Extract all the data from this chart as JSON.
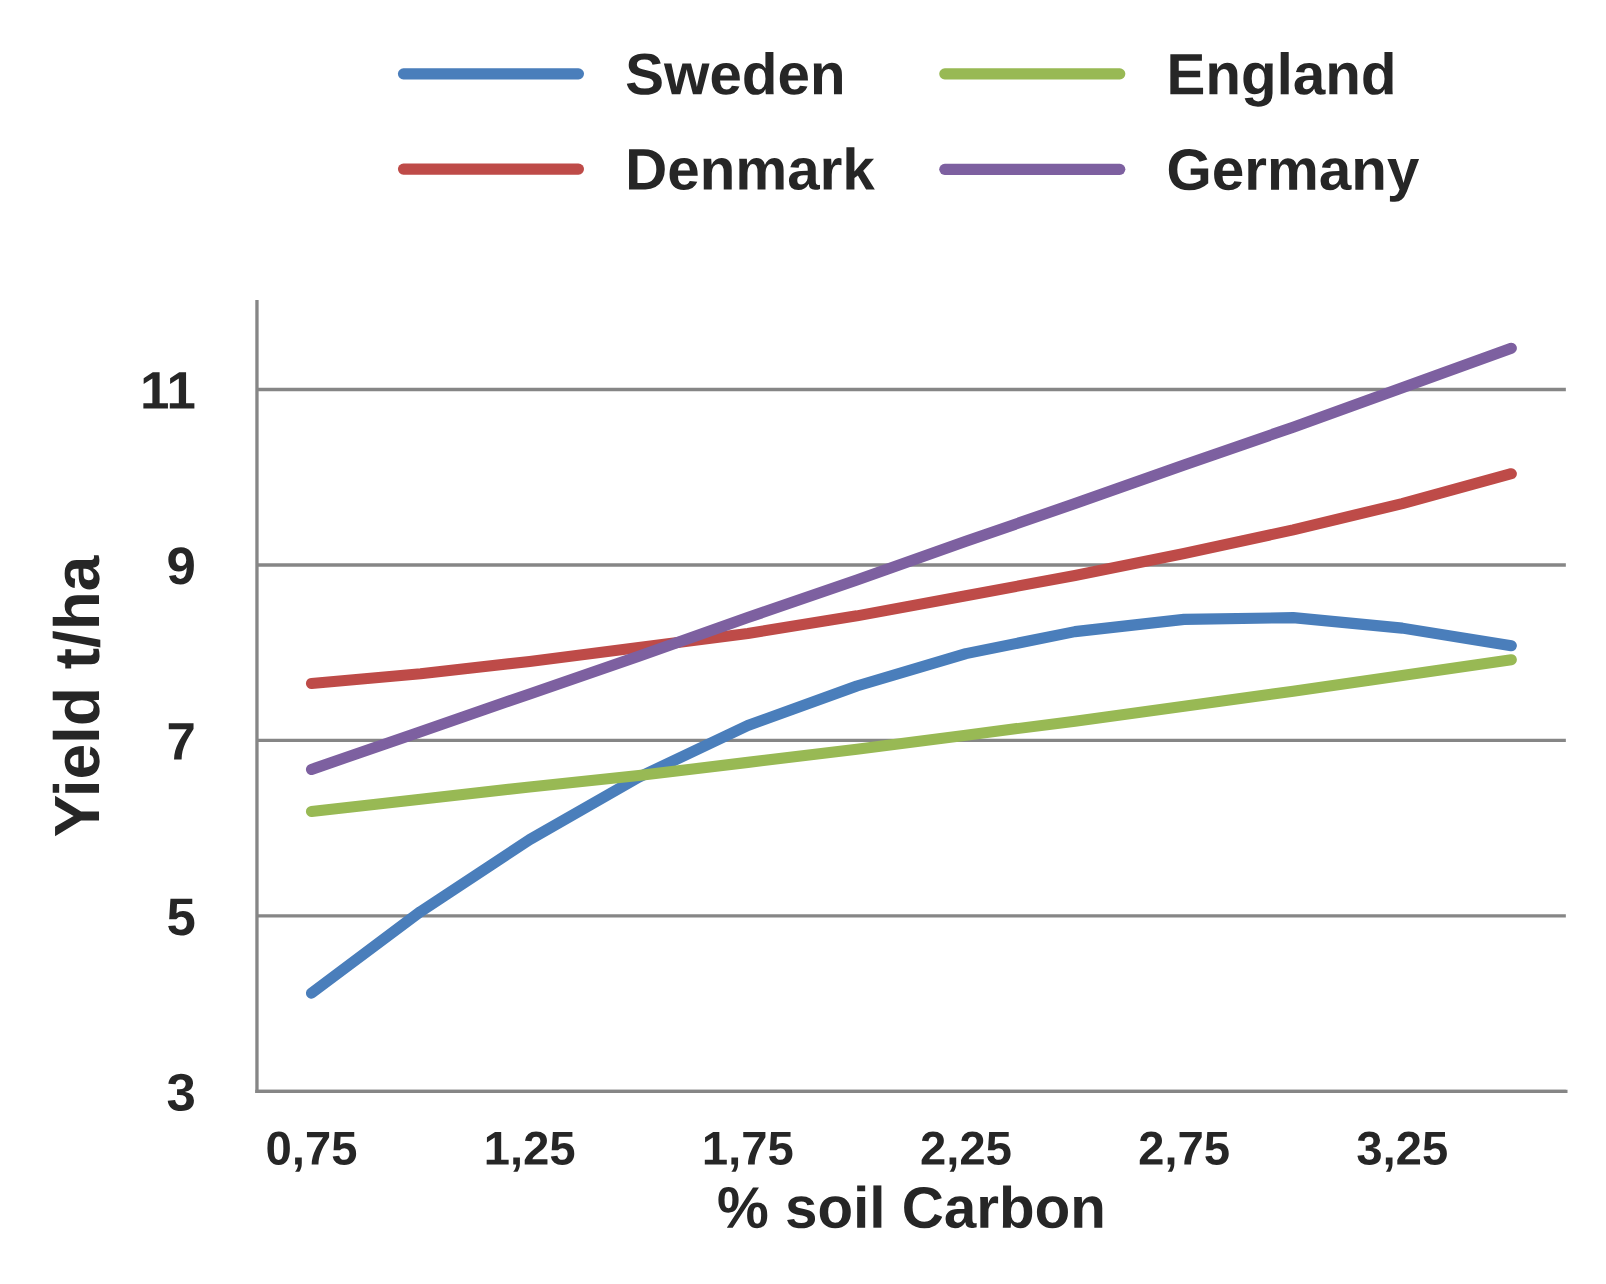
{
  "chart_data": {
    "type": "line",
    "xlabel": "% soil Carbon",
    "ylabel": "Yield t/ha",
    "categories": [
      "0,75",
      null,
      "1,25",
      null,
      "1,75",
      null,
      "2,25",
      null,
      "2,75",
      null,
      "3,25",
      null
    ],
    "series": [
      {
        "name": "Sweden",
        "color": "#4a7ebb",
        "values": [
          4.12,
          5.05,
          5.87,
          6.58,
          7.17,
          7.62,
          7.99,
          8.24,
          8.38,
          8.4,
          8.28,
          8.08
        ]
      },
      {
        "name": "Denmark",
        "color": "#be4b48",
        "values": [
          7.65,
          7.76,
          7.9,
          8.06,
          8.22,
          8.42,
          8.65,
          8.88,
          9.13,
          9.4,
          9.7,
          10.04
        ]
      },
      {
        "name": "England",
        "color": "#98b954",
        "values": [
          6.19,
          6.33,
          6.47,
          6.6,
          6.75,
          6.9,
          7.06,
          7.22,
          7.39,
          7.56,
          7.74,
          7.92
        ]
      },
      {
        "name": "Germany",
        "color": "#7d60a0",
        "values": [
          6.67,
          7.1,
          7.53,
          7.96,
          8.4,
          8.83,
          9.27,
          9.7,
          10.14,
          10.57,
          11.02,
          11.47
        ]
      }
    ],
    "ylim": [
      3,
      12
    ],
    "yticks": [
      3,
      5,
      7,
      9,
      11
    ],
    "grid": "y",
    "legend": "top",
    "marker": "none",
    "line_style": "solid"
  }
}
